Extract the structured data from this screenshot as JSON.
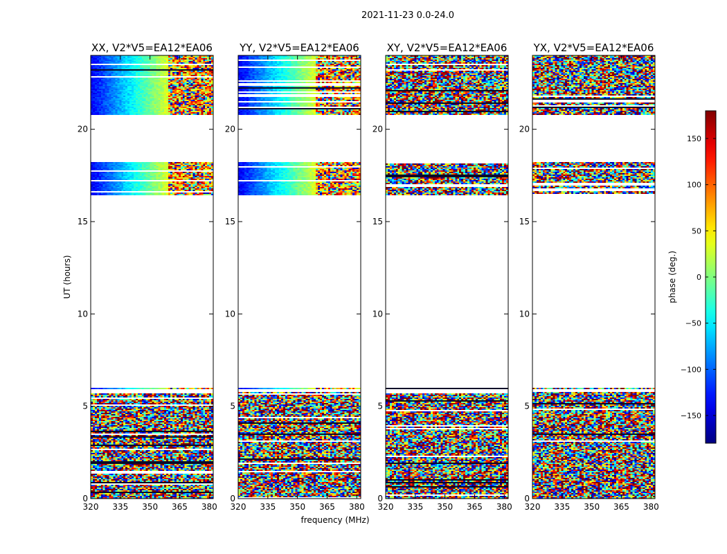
{
  "chart_data": {
    "type": "heatmap",
    "suptitle": "2021-11-23 0.0-24.0",
    "xlabel": "frequency (MHz)",
    "ylabel": "UT (hours)",
    "xlim": [
      320,
      382
    ],
    "ylim": [
      0,
      24
    ],
    "xticks": [
      320,
      335,
      350,
      365,
      380
    ],
    "yticks": [
      0,
      5,
      10,
      15,
      20
    ],
    "panels": [
      {
        "title": "XX, V2*V5=EA12*EA06",
        "pol": "XX"
      },
      {
        "title": "YY, V2*V5=EA12*EA06",
        "pol": "YY"
      },
      {
        "title": "XY, V2*V5=EA12*EA06",
        "pol": "XY"
      },
      {
        "title": "YX, V2*V5=EA12*EA06",
        "pol": "YX"
      }
    ],
    "data_segments_hours": [
      [
        0.0,
        5.8
      ],
      [
        5.9,
        6.0
      ],
      [
        16.4,
        18.2
      ],
      [
        20.8,
        24.0
      ]
    ],
    "colorbar": {
      "label": "phase (deg.)",
      "range": [
        -180,
        180
      ],
      "ticks": [
        150,
        100,
        50,
        0,
        -50,
        -100,
        -150
      ],
      "tick_labels": [
        "150",
        "100",
        "50",
        "0",
        "−50",
        "−100",
        "−150"
      ],
      "colormap": "jet"
    }
  }
}
